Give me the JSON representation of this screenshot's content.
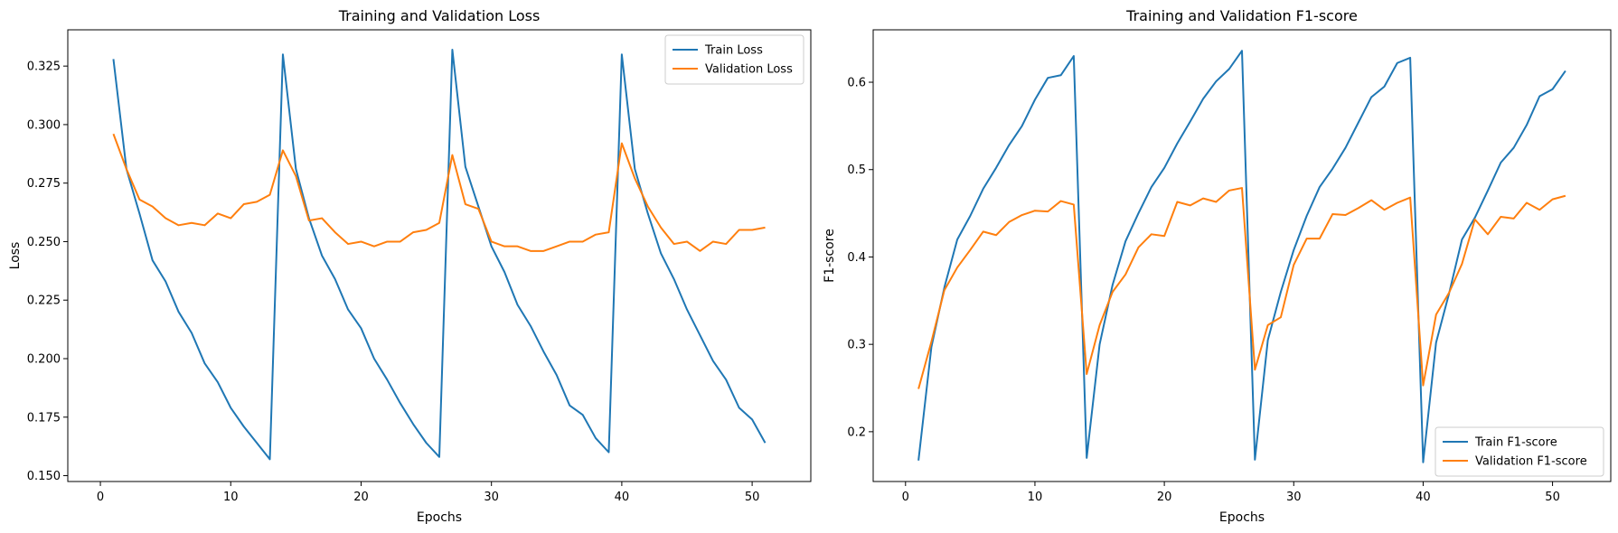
{
  "chart_data": [
    {
      "type": "line",
      "title": "Training and Validation Loss",
      "xlabel": "Epochs",
      "ylabel": "Loss",
      "xlim": [
        -2.5,
        54.5
      ],
      "ylim": [
        0.1475,
        0.3405
      ],
      "xticks": [
        0,
        10,
        20,
        30,
        40,
        50
      ],
      "yticks": [
        0.15,
        0.175,
        0.2,
        0.225,
        0.25,
        0.275,
        0.3,
        0.325
      ],
      "ytick_labels": [
        "0.150",
        "0.175",
        "0.200",
        "0.225",
        "0.250",
        "0.275",
        "0.300",
        "0.325"
      ],
      "grid": false,
      "legend_position": "upper-right",
      "x": [
        1,
        2,
        3,
        4,
        5,
        6,
        7,
        8,
        9,
        10,
        11,
        12,
        13,
        14,
        15,
        16,
        17,
        18,
        19,
        20,
        21,
        22,
        23,
        24,
        25,
        26,
        27,
        28,
        29,
        30,
        31,
        32,
        33,
        34,
        35,
        36,
        37,
        38,
        39,
        40,
        41,
        42,
        43,
        44,
        45,
        46,
        47,
        48,
        49,
        50,
        51
      ],
      "series": [
        {
          "name": "Train Loss",
          "color": "#1f77b4",
          "values": [
            0.328,
            0.281,
            0.262,
            0.242,
            0.233,
            0.22,
            0.211,
            0.198,
            0.19,
            0.179,
            0.171,
            0.164,
            0.157,
            0.33,
            0.281,
            0.26,
            0.244,
            0.234,
            0.221,
            0.213,
            0.2,
            0.191,
            0.181,
            0.172,
            0.164,
            0.158,
            0.332,
            0.282,
            0.265,
            0.248,
            0.237,
            0.223,
            0.214,
            0.203,
            0.193,
            0.18,
            0.176,
            0.166,
            0.16,
            0.33,
            0.281,
            0.262,
            0.245,
            0.234,
            0.221,
            0.21,
            0.199,
            0.191,
            0.179,
            0.174,
            0.164
          ]
        },
        {
          "name": "Validation Loss",
          "color": "#ff7f0e",
          "values": [
            0.296,
            0.281,
            0.268,
            0.265,
            0.26,
            0.257,
            0.258,
            0.257,
            0.262,
            0.26,
            0.266,
            0.267,
            0.27,
            0.289,
            0.278,
            0.259,
            0.26,
            0.254,
            0.249,
            0.25,
            0.248,
            0.25,
            0.25,
            0.254,
            0.255,
            0.258,
            0.287,
            0.266,
            0.264,
            0.25,
            0.248,
            0.248,
            0.246,
            0.246,
            0.248,
            0.25,
            0.25,
            0.253,
            0.254,
            0.292,
            0.277,
            0.265,
            0.256,
            0.249,
            0.25,
            0.246,
            0.25,
            0.249,
            0.255,
            0.255,
            0.256
          ]
        }
      ]
    },
    {
      "type": "line",
      "title": "Training and Validation F1-score",
      "xlabel": "Epochs",
      "ylabel": "F1-score",
      "xlim": [
        -2.5,
        54.5
      ],
      "ylim": [
        0.143,
        0.66
      ],
      "xticks": [
        0,
        10,
        20,
        30,
        40,
        50
      ],
      "yticks": [
        0.2,
        0.3,
        0.4,
        0.5,
        0.6
      ],
      "ytick_labels": [
        "0.2",
        "0.3",
        "0.4",
        "0.5",
        "0.6"
      ],
      "grid": false,
      "legend_position": "lower-right",
      "x": [
        1,
        2,
        3,
        4,
        5,
        6,
        7,
        8,
        9,
        10,
        11,
        12,
        13,
        14,
        15,
        16,
        17,
        18,
        19,
        20,
        21,
        22,
        23,
        24,
        25,
        26,
        27,
        28,
        29,
        30,
        31,
        32,
        33,
        34,
        35,
        36,
        37,
        38,
        39,
        40,
        41,
        42,
        43,
        44,
        45,
        46,
        47,
        48,
        49,
        50,
        51
      ],
      "series": [
        {
          "name": "Train F1-score",
          "color": "#1f77b4",
          "values": [
            0.167,
            0.297,
            0.365,
            0.42,
            0.447,
            0.478,
            0.502,
            0.528,
            0.55,
            0.58,
            0.605,
            0.608,
            0.63,
            0.17,
            0.3,
            0.368,
            0.418,
            0.45,
            0.48,
            0.502,
            0.53,
            0.555,
            0.581,
            0.601,
            0.615,
            0.636,
            0.168,
            0.305,
            0.36,
            0.408,
            0.447,
            0.48,
            0.501,
            0.525,
            0.554,
            0.583,
            0.595,
            0.622,
            0.628,
            0.165,
            0.302,
            0.358,
            0.42,
            0.445,
            0.476,
            0.508,
            0.525,
            0.551,
            0.584,
            0.592,
            0.613
          ]
        },
        {
          "name": "Validation F1-score",
          "color": "#ff7f0e",
          "values": [
            0.249,
            0.303,
            0.362,
            0.388,
            0.408,
            0.429,
            0.425,
            0.44,
            0.448,
            0.453,
            0.452,
            0.464,
            0.46,
            0.266,
            0.322,
            0.36,
            0.38,
            0.411,
            0.426,
            0.424,
            0.463,
            0.459,
            0.467,
            0.463,
            0.476,
            0.479,
            0.271,
            0.322,
            0.331,
            0.391,
            0.421,
            0.421,
            0.449,
            0.448,
            0.456,
            0.465,
            0.454,
            0.462,
            0.468,
            0.253,
            0.334,
            0.359,
            0.392,
            0.443,
            0.426,
            0.446,
            0.444,
            0.462,
            0.454,
            0.466,
            0.47
          ]
        }
      ]
    }
  ]
}
